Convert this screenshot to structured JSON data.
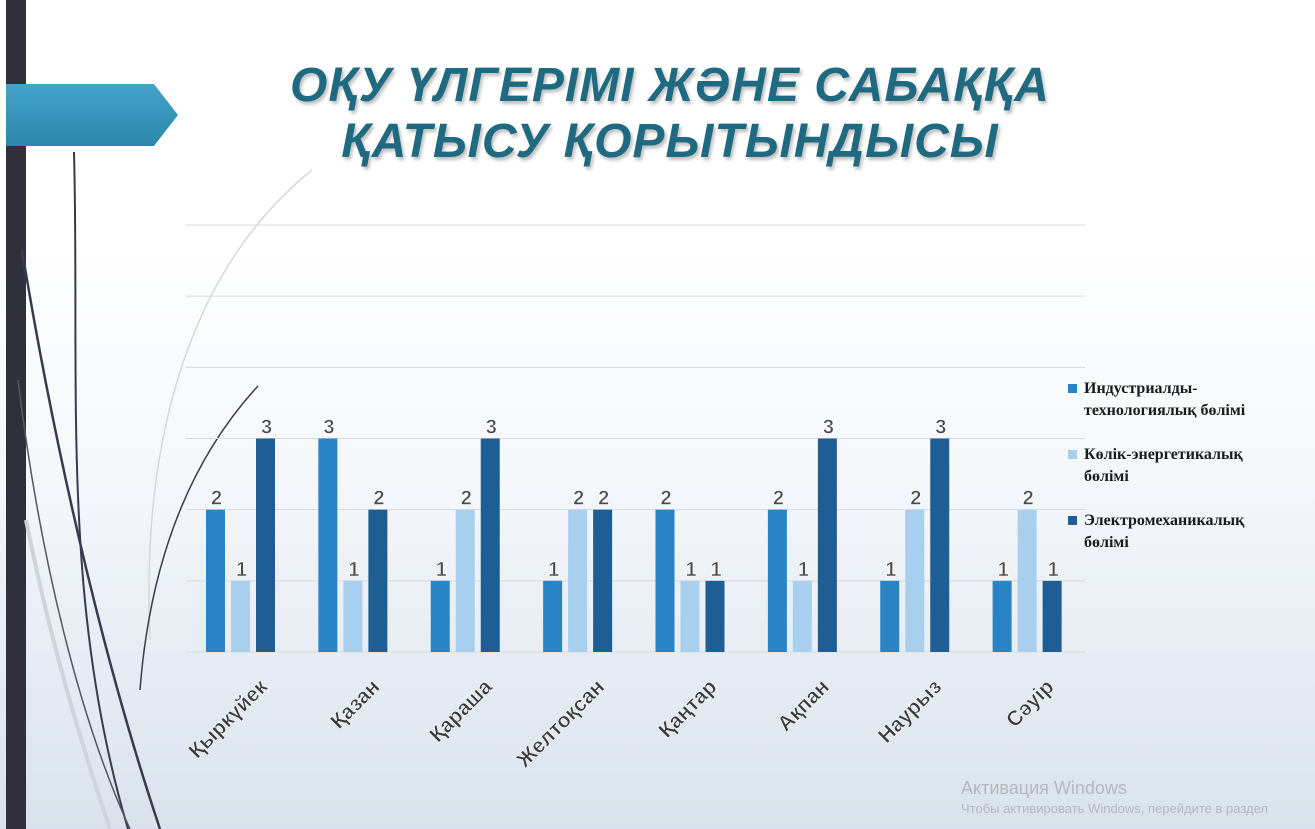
{
  "slide": {
    "title_line1": "ОҚУ ҮЛГЕРІМІ ЖӘНЕ САБАҚҚА",
    "title_line2": "ҚАТЫСУ ҚОРЫТЫНДЫСЫ",
    "accent_color": "#2d86ac",
    "title_color": "#1f6a80",
    "left_bar_color": "#30303d"
  },
  "chart_data": {
    "type": "bar",
    "title": "",
    "xlabel": "",
    "ylabel": "",
    "categories": [
      "Қыркүйек",
      "Қазан",
      "Қараша",
      "Желтоқсан",
      "Қаңтар",
      "Ақпан",
      "Наурыз",
      "Сәуір"
    ],
    "series": [
      {
        "name": "Индустриалды-технологиялық бөлімі",
        "color": "#2a83c5",
        "values": [
          2,
          3,
          1,
          1,
          2,
          2,
          1,
          1
        ]
      },
      {
        "name": "Көлік-энергетикалық бөлімі",
        "color": "#a8cfee",
        "values": [
          1,
          1,
          2,
          2,
          1,
          1,
          2,
          2
        ]
      },
      {
        "name": "Электромеханикалық бөлімі",
        "color": "#1e5e95",
        "values": [
          3,
          2,
          3,
          2,
          1,
          3,
          3,
          1
        ]
      }
    ],
    "ylim": [
      0,
      6
    ],
    "y_gridlines": true,
    "y_tick_labels_shown": false,
    "data_labels": true,
    "legend_position": "right",
    "legend": {
      "items": [
        {
          "line1": "Индустриалды-",
          "line2": "технологиялық бөлімі"
        },
        {
          "line1": "Көлік-энергетикалық",
          "line2": "бөлімі"
        },
        {
          "line1": "Электромеханикалық",
          "line2": "бөлімі"
        }
      ]
    }
  },
  "watermark": {
    "title": "Активация Windows",
    "subtitle": "Чтобы активировать Windows, перейдите в раздел"
  }
}
